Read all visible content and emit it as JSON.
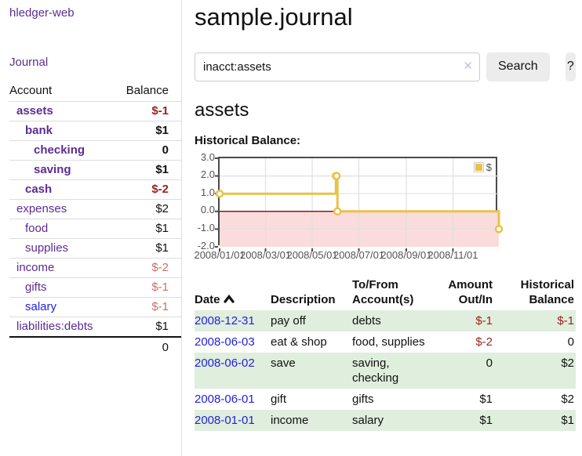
{
  "app": {
    "brand": "hledger-web",
    "nav_journal": "Journal"
  },
  "colors": {
    "link_purple": "#5c2d91",
    "link_blue": "#2222dd",
    "neg_strong": "#992420",
    "neg_soft": "#c4736d",
    "stripe_green": "#e0eedd",
    "series_gold": "#e8c24a",
    "negative_region_pink": "#fadcdc",
    "zero_line_red": "#8b1a1a",
    "plot_border": "#4a4a4a",
    "grid": "#e0e0e0"
  },
  "sidebar": {
    "header_account": "Account",
    "header_balance": "Balance",
    "accounts": [
      {
        "name": "assets",
        "balance": "$-1",
        "level": 0,
        "bold": true,
        "neg": "strong"
      },
      {
        "name": "bank",
        "balance": "$1",
        "level": 1,
        "bold": true,
        "neg": null
      },
      {
        "name": "checking",
        "balance": "0",
        "level": 2,
        "bold": true,
        "neg": null
      },
      {
        "name": "saving",
        "balance": "$1",
        "level": 2,
        "bold": true,
        "neg": null
      },
      {
        "name": "cash",
        "balance": "$-2",
        "level": 1,
        "bold": true,
        "neg": "strong"
      },
      {
        "name": "expenses",
        "balance": "$2",
        "level": 0,
        "bold": false,
        "neg": null
      },
      {
        "name": "food",
        "balance": "$1",
        "level": 1,
        "bold": false,
        "neg": null
      },
      {
        "name": "supplies",
        "balance": "$1",
        "level": 1,
        "bold": false,
        "neg": null
      },
      {
        "name": "income",
        "balance": "$-2",
        "level": 0,
        "bold": false,
        "neg": "soft"
      },
      {
        "name": "gifts",
        "balance": "$-1",
        "level": 1,
        "bold": false,
        "neg": "soft"
      },
      {
        "name": "salary",
        "balance": "$-1",
        "level": 1,
        "bold": false,
        "neg": "soft",
        "unvisited": true
      },
      {
        "name": "liabilities:debts",
        "balance": "$1",
        "level": 0,
        "bold": false,
        "neg": null
      }
    ],
    "total": "0"
  },
  "main": {
    "title": "sample.journal",
    "search": {
      "value": "inacct:assets",
      "clear_icon": "✕",
      "button_label": "Search",
      "help_label": "?"
    },
    "account_heading": "assets",
    "chart_label": "Historical Balance:"
  },
  "chart_data": {
    "type": "line",
    "step": true,
    "title": "Historical Balance:",
    "series": [
      {
        "name": "$",
        "color": "#e8c24a",
        "points": [
          [
            "2008-01-01",
            1
          ],
          [
            "2008-06-01",
            2
          ],
          [
            "2008-06-02",
            2
          ],
          [
            "2008-06-03",
            0
          ],
          [
            "2008-12-31",
            -1
          ]
        ]
      }
    ],
    "ylim": [
      -2,
      3
    ],
    "yticks": [
      "3.0",
      "2.0",
      "1.0",
      "0.0",
      "-1.0",
      "-2.0"
    ],
    "xticks": [
      "2008/01/01",
      "2008/03/01",
      "2008/05/01",
      "2008/07/01",
      "2008/09/01",
      "2008/11/01"
    ],
    "xrange": [
      "2008-01-01",
      "2008-12-31"
    ],
    "grid": true,
    "legend_position": "top-right",
    "negative_region": true
  },
  "register": {
    "headers": [
      "Date",
      "Description",
      "To/From Account(s)",
      "Amount Out/In",
      "Historical Balance"
    ],
    "sort_column": "Date",
    "sort_direction": "asc",
    "rows": [
      {
        "date": "2008-12-31",
        "description": "pay off",
        "accounts": "debts",
        "amount": "$-1",
        "balance": "$-1"
      },
      {
        "date": "2008-06-03",
        "description": "eat & shop",
        "accounts": "food, supplies",
        "amount": "$-2",
        "balance": "0"
      },
      {
        "date": "2008-06-02",
        "description": "save",
        "accounts": "saving, checking",
        "amount": "0",
        "balance": "$2"
      },
      {
        "date": "2008-06-01",
        "description": "gift",
        "accounts": "gifts",
        "amount": "$1",
        "balance": "$2"
      },
      {
        "date": "2008-01-01",
        "description": "income",
        "accounts": "salary",
        "amount": "$1",
        "balance": "$1"
      }
    ]
  }
}
